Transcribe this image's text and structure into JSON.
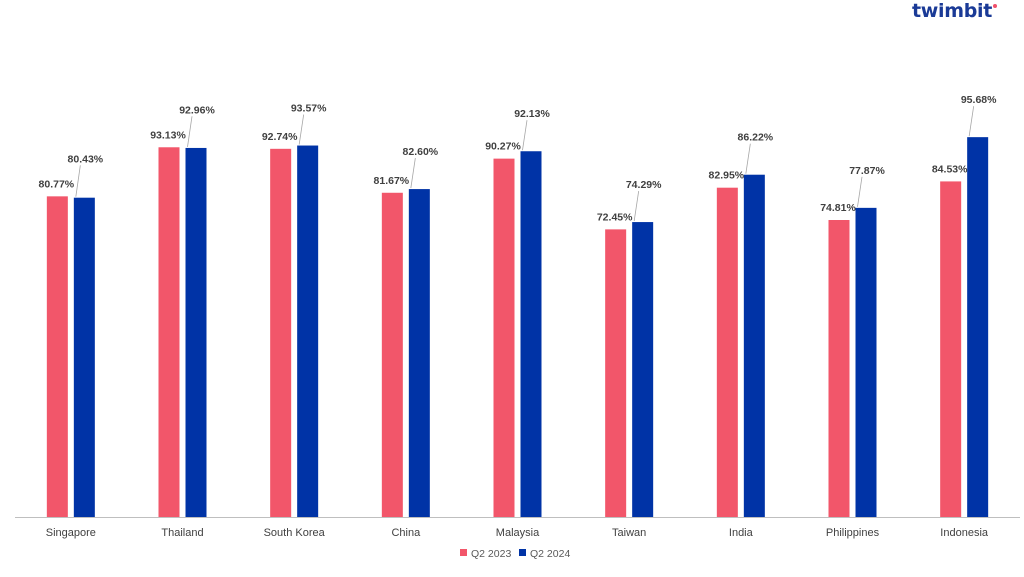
{
  "brand": {
    "name": "twimbit"
  },
  "colors": {
    "series_a": "#F2566A",
    "series_b": "#0033A6",
    "axis": "#BFBFBF",
    "leader": "#A6A6A6"
  },
  "chart_data": {
    "type": "bar",
    "title": "",
    "xlabel": "",
    "ylabel": "",
    "ylim": [
      0,
      100
    ],
    "grid": false,
    "legend": "bottom-center",
    "categories": [
      "Singapore",
      "Thailand",
      "South Korea",
      "China",
      "Malaysia",
      "Taiwan",
      "India",
      "Philippines",
      "Indonesia"
    ],
    "series": [
      {
        "name": "Q2 2023",
        "values": [
          80.77,
          93.13,
          92.74,
          81.67,
          90.27,
          72.45,
          82.95,
          74.81,
          84.53
        ],
        "labels": [
          "80.77%",
          "93.13%",
          "92.74%",
          "81.67%",
          "90.27%",
          "72.45%",
          "82.95%",
          "74.81%",
          "84.53%"
        ]
      },
      {
        "name": "Q2 2024",
        "values": [
          80.43,
          92.96,
          93.57,
          82.6,
          92.13,
          74.29,
          86.22,
          77.87,
          95.68
        ],
        "labels": [
          "80.43%",
          "92.96%",
          "93.57%",
          "82.60%",
          "92.13%",
          "74.29%",
          "86.22%",
          "77.87%",
          "95.68%"
        ]
      }
    ]
  }
}
